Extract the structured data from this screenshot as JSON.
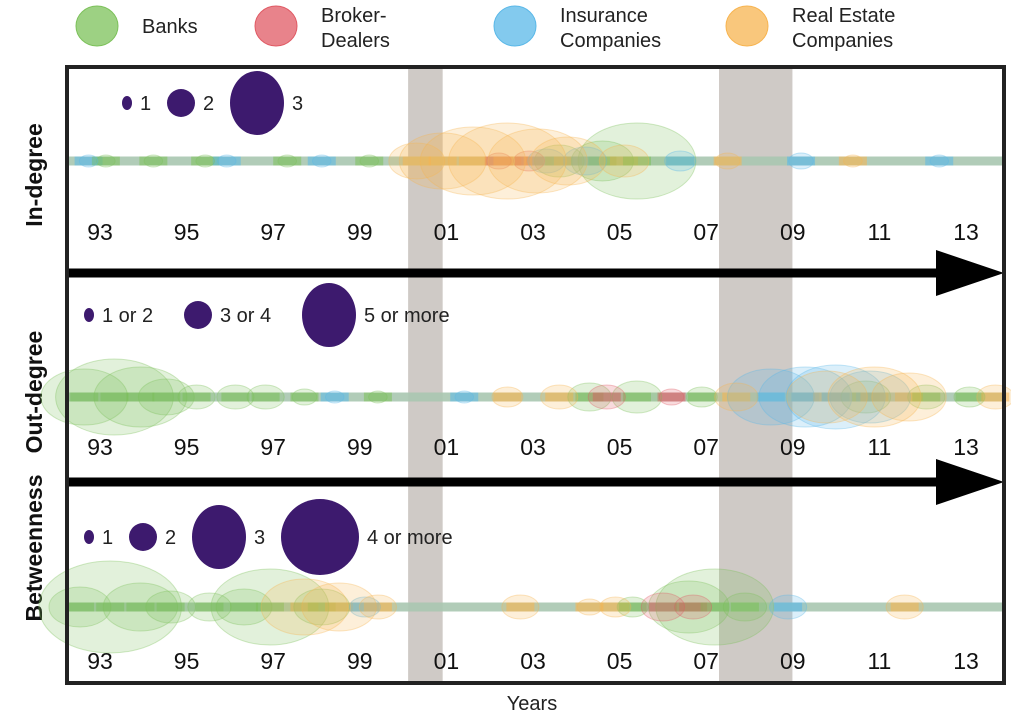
{
  "legend": [
    {
      "lines": [
        "Banks"
      ],
      "color": "#7cc15a"
    },
    {
      "lines": [
        "Broker-",
        "Dealers"
      ],
      "color": "#e05a64"
    },
    {
      "lines": [
        "Insurance",
        "Companies"
      ],
      "color": "#5ab8e8"
    },
    {
      "lines": [
        "Real Estate",
        "Companies"
      ],
      "color": "#f7b450"
    }
  ],
  "x_axis_title": "Years",
  "x_ticks": [
    "93",
    "95",
    "97",
    "99",
    "01",
    "03",
    "05",
    "07",
    "09",
    "11",
    "13"
  ],
  "colors": {
    "size_key": "#3d1a6e",
    "shade": "#cfcac6",
    "track": "#a8c7b0",
    "frame": "#222222",
    "arrow": "#000000"
  },
  "chart_data": {
    "type": "scatter",
    "x_range": [
      1992.3,
      2014.0
    ],
    "shaded_periods": [
      [
        2000.2,
        2001.0
      ],
      [
        2007.4,
        2009.1
      ]
    ],
    "panels": [
      {
        "label": "In-degree",
        "size_key": [
          {
            "label": "1",
            "size": 1
          },
          {
            "label": "2",
            "size": 2
          },
          {
            "label": "3",
            "size": 3
          }
        ],
        "series": [
          {
            "category": "Banks",
            "points": [
              {
                "x": 1993.2,
                "size": 0.3
              },
              {
                "x": 1994.3,
                "size": 0.3
              },
              {
                "x": 1995.5,
                "size": 0.3
              },
              {
                "x": 1997.4,
                "size": 0.3
              },
              {
                "x": 1999.3,
                "size": 0.3
              },
              {
                "x": 2003.7,
                "size": 0.8
              },
              {
                "x": 2004.7,
                "size": 1.0
              },
              {
                "x": 2005.5,
                "size": 1.9
              }
            ]
          },
          {
            "category": "Broker-Dealers",
            "points": [
              {
                "x": 2002.3,
                "size": 0.4
              },
              {
                "x": 2003.0,
                "size": 0.5
              }
            ]
          },
          {
            "category": "Insurance Companies",
            "points": [
              {
                "x": 1992.8,
                "size": 0.3
              },
              {
                "x": 1996.0,
                "size": 0.3
              },
              {
                "x": 1998.2,
                "size": 0.3
              },
              {
                "x": 2003.4,
                "size": 0.6
              },
              {
                "x": 2004.3,
                "size": 0.7
              },
              {
                "x": 2006.5,
                "size": 0.5
              },
              {
                "x": 2009.3,
                "size": 0.4
              },
              {
                "x": 2012.5,
                "size": 0.3
              }
            ]
          },
          {
            "category": "Real Estate Companies",
            "points": [
              {
                "x": 2000.4,
                "size": 0.9
              },
              {
                "x": 2001.0,
                "size": 1.4
              },
              {
                "x": 2001.7,
                "size": 1.7
              },
              {
                "x": 2002.5,
                "size": 1.9
              },
              {
                "x": 2003.2,
                "size": 1.6
              },
              {
                "x": 2003.9,
                "size": 1.2
              },
              {
                "x": 2005.2,
                "size": 0.8
              },
              {
                "x": 2007.6,
                "size": 0.4
              },
              {
                "x": 2010.5,
                "size": 0.3
              }
            ]
          }
        ]
      },
      {
        "label": "Out-degree",
        "size_key": [
          {
            "label": "1 or 2",
            "size": 1
          },
          {
            "label": "3 or 4",
            "size": 2
          },
          {
            "label": "5 or more",
            "size": 3
          }
        ],
        "series": [
          {
            "category": "Banks",
            "points": [
              {
                "x": 1992.7,
                "size": 1.4
              },
              {
                "x": 1993.4,
                "size": 1.9
              },
              {
                "x": 1994.0,
                "size": 1.5
              },
              {
                "x": 1994.6,
                "size": 0.9
              },
              {
                "x": 1995.3,
                "size": 0.6
              },
              {
                "x": 1996.2,
                "size": 0.6
              },
              {
                "x": 1996.9,
                "size": 0.6
              },
              {
                "x": 1997.8,
                "size": 0.4
              },
              {
                "x": 1999.5,
                "size": 0.3
              },
              {
                "x": 2004.4,
                "size": 0.7
              },
              {
                "x": 2005.5,
                "size": 0.8
              },
              {
                "x": 2007.0,
                "size": 0.5
              },
              {
                "x": 2010.8,
                "size": 0.8
              },
              {
                "x": 2012.2,
                "size": 0.6
              },
              {
                "x": 2013.2,
                "size": 0.5
              }
            ]
          },
          {
            "category": "Broker-Dealers",
            "points": [
              {
                "x": 2004.8,
                "size": 0.6
              },
              {
                "x": 2006.3,
                "size": 0.4
              }
            ]
          },
          {
            "category": "Insurance Companies",
            "points": [
              {
                "x": 1998.5,
                "size": 0.3
              },
              {
                "x": 2001.5,
                "size": 0.3
              },
              {
                "x": 2008.6,
                "size": 1.4
              },
              {
                "x": 2009.4,
                "size": 1.5
              },
              {
                "x": 2010.1,
                "size": 1.6
              },
              {
                "x": 2010.9,
                "size": 1.3
              }
            ]
          },
          {
            "category": "Real Estate Companies",
            "points": [
              {
                "x": 2002.5,
                "size": 0.5
              },
              {
                "x": 2003.7,
                "size": 0.6
              },
              {
                "x": 2007.8,
                "size": 0.7
              },
              {
                "x": 2009.9,
                "size": 1.3
              },
              {
                "x": 2011.0,
                "size": 1.5
              },
              {
                "x": 2011.8,
                "size": 1.2
              },
              {
                "x": 2013.8,
                "size": 0.6
              }
            ]
          }
        ]
      },
      {
        "label": "Betweenness",
        "size_key": [
          {
            "label": "1",
            "size": 1
          },
          {
            "label": "2",
            "size": 2
          },
          {
            "label": "3",
            "size": 3
          },
          {
            "label": "4 or more",
            "size": 4
          }
        ],
        "series": [
          {
            "category": "Banks",
            "points": [
              {
                "x": 1992.6,
                "size": 1.0
              },
              {
                "x": 1993.3,
                "size": 2.3
              },
              {
                "x": 1994.0,
                "size": 1.2
              },
              {
                "x": 1994.7,
                "size": 0.8
              },
              {
                "x": 1995.6,
                "size": 0.7
              },
              {
                "x": 1996.4,
                "size": 0.9
              },
              {
                "x": 1997.0,
                "size": 1.9
              },
              {
                "x": 1998.2,
                "size": 0.9
              },
              {
                "x": 2005.4,
                "size": 0.5
              },
              {
                "x": 2006.7,
                "size": 1.3
              },
              {
                "x": 2007.3,
                "size": 1.9
              },
              {
                "x": 2008.0,
                "size": 0.7
              }
            ]
          },
          {
            "category": "Broker-Dealers",
            "points": [
              {
                "x": 2006.1,
                "size": 0.7
              },
              {
                "x": 2006.8,
                "size": 0.6
              }
            ]
          },
          {
            "category": "Insurance Companies",
            "points": [
              {
                "x": 1999.2,
                "size": 0.5
              },
              {
                "x": 2009.0,
                "size": 0.6
              }
            ]
          },
          {
            "category": "Real Estate Companies",
            "points": [
              {
                "x": 1997.8,
                "size": 1.4
              },
              {
                "x": 1998.6,
                "size": 1.2
              },
              {
                "x": 1999.5,
                "size": 0.6
              },
              {
                "x": 2002.8,
                "size": 0.6
              },
              {
                "x": 2004.4,
                "size": 0.4
              },
              {
                "x": 2005.0,
                "size": 0.5
              },
              {
                "x": 2011.7,
                "size": 0.6
              }
            ]
          }
        ]
      }
    ]
  }
}
